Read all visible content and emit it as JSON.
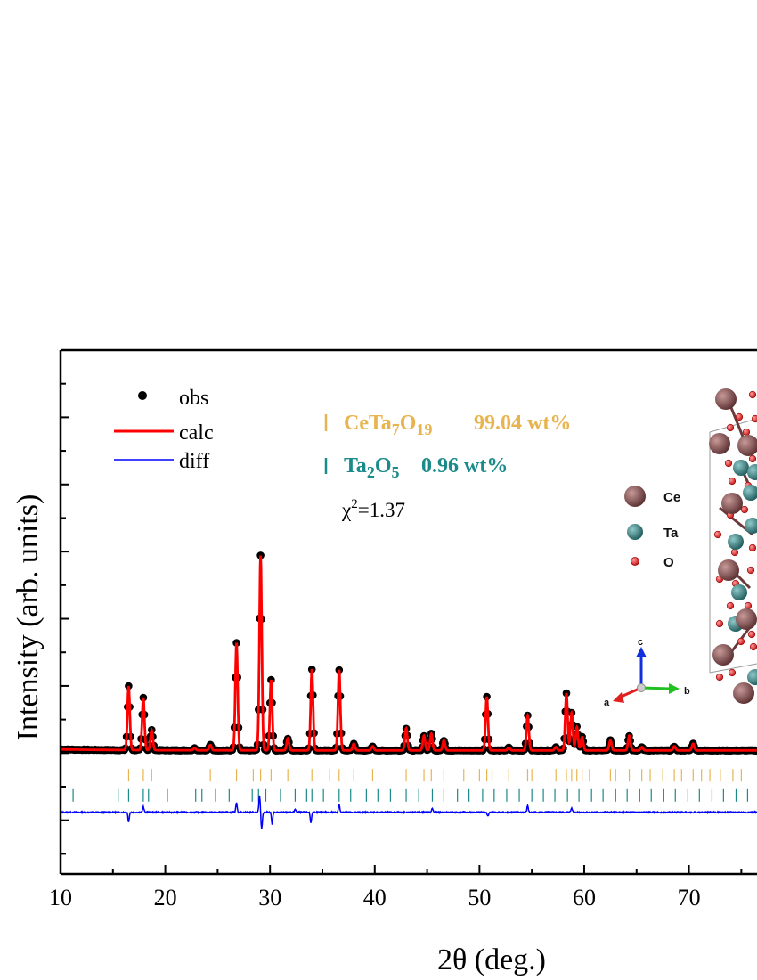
{
  "chart_data": {
    "type": "line",
    "xlabel": "2θ (deg.)",
    "ylabel": "Intensity (arb. units)",
    "xlim": [
      10,
      76.5
    ],
    "ylim": [
      -1.8,
      6.0
    ],
    "x_tick_labels": [
      "10",
      "20",
      "30",
      "40",
      "50",
      "60",
      "70"
    ],
    "legend": {
      "placement": "top-left",
      "entries": [
        {
          "name": "obs",
          "color": "#000000",
          "marker": "circle"
        },
        {
          "name": "calc",
          "color": "#ff0000",
          "marker": "line"
        },
        {
          "name": "diff",
          "color": "#0000ff",
          "marker": "line"
        }
      ]
    },
    "phases": [
      {
        "label_main": "CeTa",
        "sub1": "7",
        "mid": "O",
        "sub2": "19",
        "wt": "99.04 wt%",
        "color": "#e8b44f"
      },
      {
        "label_main": "Ta",
        "sub1": "2",
        "mid": "O",
        "sub2": "5",
        "wt": "0.96 wt%",
        "color": "#1a8a8a"
      }
    ],
    "chi2": {
      "symbol": "χ",
      "sup": "2",
      "value": "=1.37"
    },
    "background_level": 0.04,
    "peaks": [
      {
        "x": 16.5,
        "y": 0.95
      },
      {
        "x": 17.9,
        "y": 0.78
      },
      {
        "x": 18.7,
        "y": 0.3
      },
      {
        "x": 22.8,
        "y": 0.03
      },
      {
        "x": 24.3,
        "y": 0.08
      },
      {
        "x": 26.8,
        "y": 1.6
      },
      {
        "x": 29.1,
        "y": 2.9
      },
      {
        "x": 30.1,
        "y": 1.05
      },
      {
        "x": 31.7,
        "y": 0.18
      },
      {
        "x": 34.0,
        "y": 1.21
      },
      {
        "x": 36.6,
        "y": 1.2
      },
      {
        "x": 38.0,
        "y": 0.1
      },
      {
        "x": 39.8,
        "y": 0.06
      },
      {
        "x": 43.0,
        "y": 0.33
      },
      {
        "x": 44.7,
        "y": 0.22
      },
      {
        "x": 45.4,
        "y": 0.25
      },
      {
        "x": 46.6,
        "y": 0.15
      },
      {
        "x": 50.7,
        "y": 0.8
      },
      {
        "x": 52.8,
        "y": 0.04
      },
      {
        "x": 54.6,
        "y": 0.52
      },
      {
        "x": 57.3,
        "y": 0.05
      },
      {
        "x": 58.3,
        "y": 0.85
      },
      {
        "x": 58.8,
        "y": 0.56
      },
      {
        "x": 59.3,
        "y": 0.35
      },
      {
        "x": 59.8,
        "y": 0.2
      },
      {
        "x": 62.5,
        "y": 0.15
      },
      {
        "x": 64.3,
        "y": 0.22
      },
      {
        "x": 65.5,
        "y": 0.05
      },
      {
        "x": 68.6,
        "y": 0.06
      },
      {
        "x": 70.4,
        "y": 0.1
      }
    ],
    "peak_width": 0.16,
    "reflections_phase1": [
      16.5,
      17.9,
      18.7,
      24.3,
      26.8,
      28.4,
      29.1,
      30.1,
      31.7,
      34.0,
      35.7,
      36.6,
      38.0,
      39.8,
      43.0,
      44.7,
      45.4,
      46.6,
      48.5,
      50.0,
      50.7,
      51.2,
      52.8,
      54.6,
      55.0,
      57.3,
      58.3,
      58.8,
      59.3,
      59.8,
      60.5,
      62.5,
      63.0,
      64.3,
      65.5,
      66.3,
      67.5,
      68.6,
      69.3,
      70.4,
      71.2,
      72.0,
      73.0,
      74.2,
      75.0
    ],
    "reflections_phase2": [
      11.2,
      15.5,
      16.5,
      17.9,
      18.4,
      20.2,
      22.9,
      23.5,
      24.8,
      26.1,
      28.3,
      28.9,
      29.6,
      31.0,
      32.4,
      33.5,
      34.0,
      35.1,
      36.6,
      37.7,
      39.2,
      40.3,
      41.5,
      43.0,
      44.2,
      45.5,
      46.6,
      47.9,
      49.0,
      50.3,
      51.4,
      52.6,
      53.8,
      55.0,
      56.1,
      57.2,
      58.4,
      59.5,
      60.7,
      61.8,
      63.0,
      64.1,
      65.3,
      66.4,
      67.6,
      68.7,
      69.9,
      71.0,
      72.2,
      73.3,
      74.5,
      75.6
    ],
    "diff_features": [
      {
        "x": 16.5,
        "y": -0.14
      },
      {
        "x": 17.9,
        "y": 0.08
      },
      {
        "x": 26.8,
        "y": 0.15
      },
      {
        "x": 29.0,
        "y": 0.25
      },
      {
        "x": 29.2,
        "y": -0.25
      },
      {
        "x": 30.2,
        "y": -0.18
      },
      {
        "x": 32.4,
        "y": 0.05
      },
      {
        "x": 33.9,
        "y": -0.16
      },
      {
        "x": 36.6,
        "y": 0.12
      },
      {
        "x": 45.5,
        "y": 0.06
      },
      {
        "x": 50.8,
        "y": -0.06
      },
      {
        "x": 54.6,
        "y": 0.1
      },
      {
        "x": 58.8,
        "y": 0.07
      }
    ],
    "offsets": {
      "reflections_phase1": -0.33,
      "reflections_phase2": -0.63,
      "diff": -0.88
    }
  },
  "structure_inset": {
    "legend": [
      {
        "label": "Ce",
        "color": "#7a4b4b"
      },
      {
        "label": "Ta",
        "color": "#2f7373"
      },
      {
        "label": "O",
        "color": "#e02020"
      }
    ],
    "axes": [
      {
        "label": "c",
        "color": "#1030e0"
      },
      {
        "label": "a",
        "color": "#e02020"
      },
      {
        "label": "b",
        "color": "#20c020"
      }
    ]
  }
}
